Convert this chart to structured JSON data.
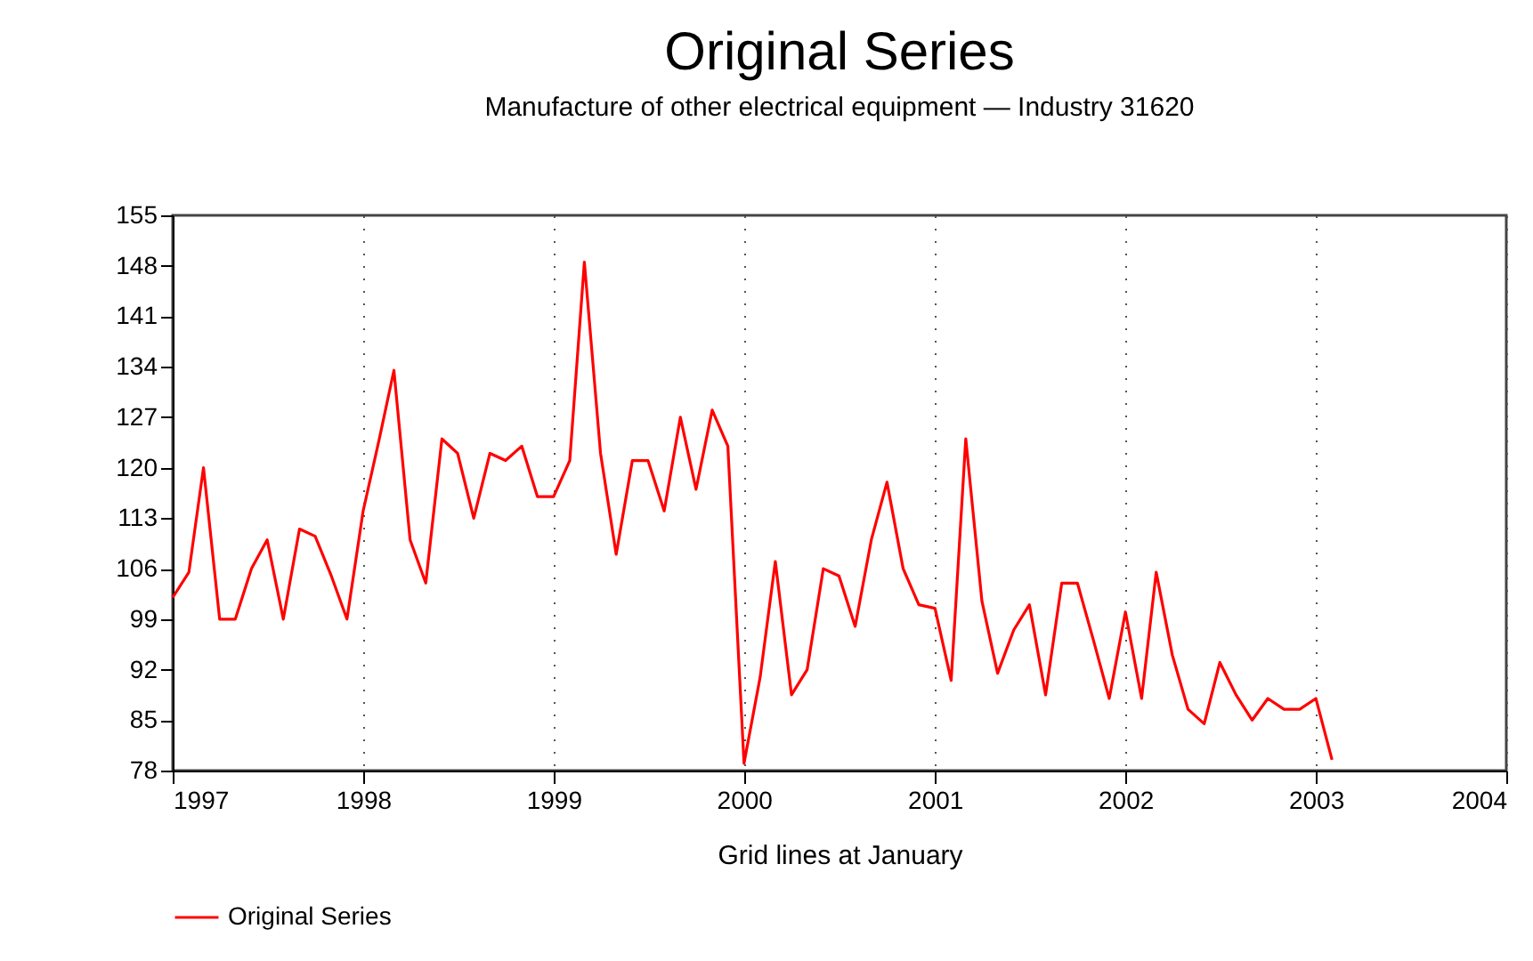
{
  "chart_data": {
    "type": "line",
    "title": "Original Series",
    "subtitle": "Manufacture of other electrical equipment — Industry 31620",
    "xlabel": "Grid lines at January",
    "x": [
      "1997-01",
      "1997-02",
      "1997-03",
      "1997-04",
      "1997-05",
      "1997-06",
      "1997-07",
      "1997-08",
      "1997-09",
      "1997-10",
      "1997-11",
      "1997-12",
      "1998-01",
      "1998-02",
      "1998-03",
      "1998-04",
      "1998-05",
      "1998-06",
      "1998-07",
      "1998-08",
      "1998-09",
      "1998-10",
      "1998-11",
      "1998-12",
      "1999-01",
      "1999-02",
      "1999-03",
      "1999-04",
      "1999-05",
      "1999-06",
      "1999-07",
      "1999-08",
      "1999-09",
      "1999-10",
      "1999-11",
      "1999-12",
      "2000-01",
      "2000-02",
      "2000-03",
      "2000-04",
      "2000-05",
      "2000-06",
      "2000-07",
      "2000-08",
      "2000-09",
      "2000-10",
      "2000-11",
      "2000-12",
      "2001-01",
      "2001-02",
      "2001-03",
      "2001-04",
      "2001-05",
      "2001-06",
      "2001-07",
      "2001-08",
      "2001-09",
      "2001-10",
      "2001-11",
      "2001-12",
      "2002-01",
      "2002-02",
      "2002-03",
      "2002-04",
      "2002-05",
      "2002-06",
      "2002-07",
      "2002-08",
      "2002-09",
      "2002-10",
      "2002-11",
      "2002-12",
      "2003-01",
      "2003-02"
    ],
    "series": [
      {
        "name": "Original Series",
        "color": "#ff0000",
        "values": [
          102,
          105.5,
          120,
          99,
          99,
          106,
          110,
          99,
          111.5,
          110.5,
          105,
          99,
          114,
          124,
          133.5,
          110,
          104,
          124,
          122,
          113,
          122,
          121,
          123,
          116,
          116,
          121,
          148.5,
          122,
          108,
          121,
          121,
          114,
          127,
          117,
          128,
          123,
          79,
          91,
          107,
          88.5,
          92,
          106,
          105,
          98,
          110,
          118,
          106,
          101,
          100.5,
          90.5,
          124,
          101.5,
          91.5,
          97.5,
          101,
          88.5,
          104,
          104,
          96,
          88,
          100,
          88,
          105.5,
          94,
          86.5,
          84.5,
          93,
          88.5,
          85,
          88,
          86.5,
          86.5,
          88,
          79.5
        ]
      }
    ],
    "xlim": [
      "1997-01",
      "2004-01"
    ],
    "xticks": [
      "1997",
      "1998",
      "1999",
      "2000",
      "2001",
      "2002",
      "2003",
      "2004"
    ],
    "ylim": [
      78,
      155
    ],
    "yticks": [
      78,
      85,
      92,
      99,
      106,
      113,
      120,
      127,
      134,
      141,
      148,
      155
    ],
    "grid": "x",
    "legend": "bottom",
    "line_style": "solid",
    "marker": "none"
  }
}
